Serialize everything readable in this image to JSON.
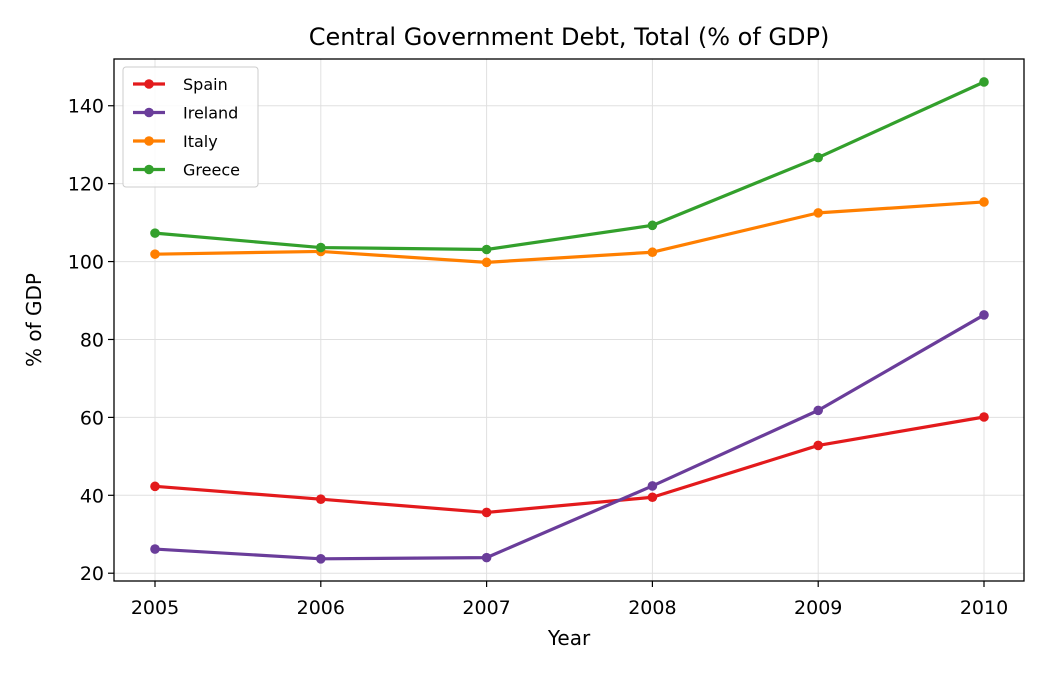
{
  "chart_data": {
    "type": "line",
    "title": "Central Government Debt, Total (% of GDP)",
    "xlabel": "Year",
    "ylabel": "% of GDP",
    "x": [
      "2005",
      "2006",
      "2007",
      "2008",
      "2009",
      "2010"
    ],
    "ylim": [
      18,
      152
    ],
    "yticks": [
      20,
      40,
      60,
      80,
      100,
      120,
      140
    ],
    "grid": true,
    "legend_position": "top-left",
    "series": [
      {
        "name": "Spain",
        "color": "#e31a1c",
        "values": [
          42.3,
          39.0,
          35.6,
          39.5,
          52.8,
          60.1
        ]
      },
      {
        "name": "Ireland",
        "color": "#6a3d9a",
        "values": [
          26.2,
          23.7,
          24.0,
          42.4,
          61.8,
          86.3
        ]
      },
      {
        "name": "Italy",
        "color": "#ff7f00",
        "values": [
          101.9,
          102.6,
          99.8,
          102.4,
          112.5,
          115.3
        ]
      },
      {
        "name": "Greece",
        "color": "#33a02c",
        "values": [
          107.3,
          103.6,
          103.1,
          109.3,
          126.7,
          146.1
        ]
      }
    ]
  }
}
